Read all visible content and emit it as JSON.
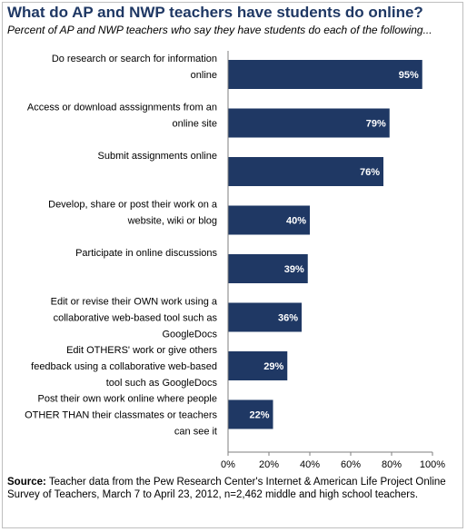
{
  "title": "What do AP and NWP teachers have students do online?",
  "subtitle": "Percent of AP and NWP teachers who say they have students do each of the following...",
  "source": {
    "label": "Source:",
    "text": " Teacher data from the Pew Research Center's Internet & American Life Project Online Survey of Teachers, March 7 to April 23, 2012, n=2,462 middle and high school teachers."
  },
  "chart_data": {
    "type": "bar",
    "orientation": "horizontal",
    "categories": [
      [
        "Do research or search for information",
        "online"
      ],
      [
        "Access or download asssignments from an",
        "online site"
      ],
      [
        "Submit assignments online"
      ],
      [
        "Develop, share or post their work on a",
        "website, wiki or blog"
      ],
      [
        "Participate in online discussions"
      ],
      [
        "Edit or revise their OWN work using a",
        "collaborative web-based tool such as",
        "GoogleDocs"
      ],
      [
        "Edit OTHERS' work or give others",
        "feedback using a collaborative web-based",
        "tool such as GoogleDocs"
      ],
      [
        "Post their own work online where people",
        "OTHER THAN their classmates or teachers",
        "can see it"
      ]
    ],
    "values": [
      95,
      79,
      76,
      40,
      39,
      36,
      29,
      22
    ],
    "value_labels": [
      "95%",
      "79%",
      "76%",
      "40%",
      "39%",
      "36%",
      "29%",
      "22%"
    ],
    "xlim": [
      0,
      100
    ],
    "xticks": [
      "0%",
      "20%",
      "40%",
      "60%",
      "80%",
      "100%"
    ],
    "grid": false,
    "bar_color": "#1f3864"
  }
}
